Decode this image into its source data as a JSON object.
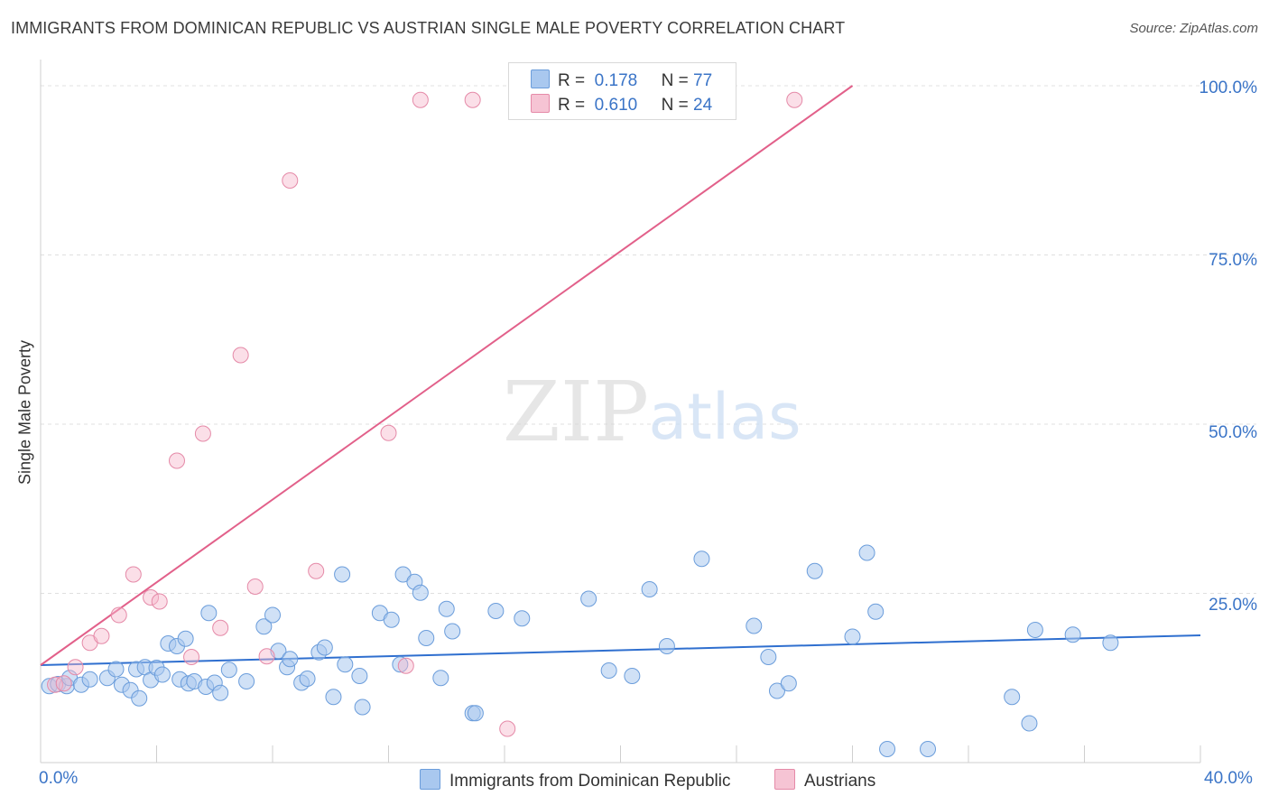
{
  "title": "IMMIGRANTS FROM DOMINICAN REPUBLIC VS AUSTRIAN SINGLE MALE POVERTY CORRELATION CHART",
  "source": "Source: ZipAtlas.com",
  "watermark": {
    "zip": "ZIP",
    "atlas": "atlas"
  },
  "legend_top": [
    {
      "r_label": "R =",
      "r_value": "0.178",
      "n_label": "N =",
      "n_value": "77"
    },
    {
      "r_label": "R =",
      "r_value": "0.610",
      "n_label": "N =",
      "n_value": "24"
    }
  ],
  "legend_bottom": [
    "Immigrants from Dominican Republic",
    "Austrians"
  ],
  "y_tick_labels": {
    "t100": "100.0%",
    "t75": "75.0%",
    "t50": "50.0%",
    "t25": "25.0%"
  },
  "x_tick_labels": {
    "left": "0.0%",
    "right": "40.0%"
  },
  "colors": {
    "blue_fill": "#a9c8ef",
    "blue_stroke": "#6b9ddb",
    "blue_line": "#2f6fcf",
    "pink_fill": "#f6b8cb",
    "pink_stroke": "#e58aa8",
    "pink_line": "#e2608a",
    "axis_text": "#3a74c7",
    "grid": "#e0e0e0"
  },
  "chart_data": {
    "type": "scatter",
    "title": "IMMIGRANTS FROM DOMINICAN REPUBLIC VS AUSTRIAN SINGLE MALE POVERTY CORRELATION CHART",
    "xlabel": "",
    "ylabel": "Single Male Poverty",
    "xlim": [
      0,
      40
    ],
    "ylim": [
      0,
      102
    ],
    "grid": true,
    "series": [
      {
        "name": "Immigrants from Dominican Republic",
        "color": "#6b9ddb",
        "R": 0.178,
        "N": 77,
        "trend": {
          "x": [
            0,
            40
          ],
          "y": [
            14.4,
            18.8
          ]
        },
        "points": [
          [
            0.3,
            11.3
          ],
          [
            0.6,
            11.6
          ],
          [
            0.9,
            11.3
          ],
          [
            1.0,
            12.5
          ],
          [
            1.4,
            11.5
          ],
          [
            1.7,
            12.3
          ],
          [
            2.3,
            12.5
          ],
          [
            2.8,
            11.5
          ],
          [
            3.1,
            10.7
          ],
          [
            3.4,
            9.5
          ],
          [
            3.3,
            13.8
          ],
          [
            3.6,
            14.1
          ],
          [
            3.8,
            12.2
          ],
          [
            4.0,
            14.0
          ],
          [
            4.2,
            13.0
          ],
          [
            4.4,
            17.6
          ],
          [
            4.7,
            17.2
          ],
          [
            5.0,
            18.3
          ],
          [
            4.8,
            12.3
          ],
          [
            5.1,
            11.7
          ],
          [
            5.3,
            12.0
          ],
          [
            5.7,
            11.2
          ],
          [
            5.8,
            22.1
          ],
          [
            6.0,
            11.8
          ],
          [
            6.2,
            10.3
          ],
          [
            6.5,
            13.7
          ],
          [
            7.1,
            12.0
          ],
          [
            7.7,
            20.1
          ],
          [
            8.0,
            21.8
          ],
          [
            8.2,
            16.5
          ],
          [
            8.5,
            14.1
          ],
          [
            8.6,
            15.3
          ],
          [
            9.0,
            11.8
          ],
          [
            9.2,
            12.4
          ],
          [
            9.6,
            16.3
          ],
          [
            9.8,
            17.0
          ],
          [
            10.1,
            9.7
          ],
          [
            10.5,
            14.5
          ],
          [
            10.4,
            27.8
          ],
          [
            11.1,
            8.2
          ],
          [
            11.0,
            12.8
          ],
          [
            11.7,
            22.1
          ],
          [
            12.1,
            21.1
          ],
          [
            12.4,
            14.5
          ],
          [
            12.5,
            27.8
          ],
          [
            12.9,
            26.7
          ],
          [
            13.1,
            25.1
          ],
          [
            13.3,
            18.4
          ],
          [
            13.8,
            12.5
          ],
          [
            14.0,
            22.7
          ],
          [
            14.2,
            19.4
          ],
          [
            14.9,
            7.3
          ],
          [
            15.0,
            7.3
          ],
          [
            15.7,
            22.4
          ],
          [
            16.6,
            21.3
          ],
          [
            18.9,
            24.2
          ],
          [
            19.6,
            13.6
          ],
          [
            20.4,
            12.8
          ],
          [
            21.0,
            25.6
          ],
          [
            21.6,
            17.2
          ],
          [
            22.8,
            30.1
          ],
          [
            24.6,
            20.2
          ],
          [
            25.1,
            15.6
          ],
          [
            25.4,
            10.6
          ],
          [
            25.8,
            11.7
          ],
          [
            26.7,
            28.3
          ],
          [
            28.0,
            18.6
          ],
          [
            28.5,
            31.0
          ],
          [
            28.8,
            22.3
          ],
          [
            29.2,
            2.0
          ],
          [
            30.6,
            2.0
          ],
          [
            33.5,
            9.7
          ],
          [
            34.1,
            5.8
          ],
          [
            34.3,
            19.6
          ],
          [
            35.6,
            18.9
          ],
          [
            36.9,
            17.7
          ],
          [
            2.6,
            13.8
          ]
        ]
      },
      {
        "name": "Austrians",
        "color": "#e58aa8",
        "R": 0.61,
        "N": 24,
        "trend": {
          "x": [
            0,
            28
          ],
          "y": [
            14.4,
            100.0
          ]
        },
        "points": [
          [
            0.5,
            11.5
          ],
          [
            0.8,
            11.7
          ],
          [
            1.2,
            14.1
          ],
          [
            1.7,
            17.7
          ],
          [
            2.1,
            18.7
          ],
          [
            2.7,
            21.8
          ],
          [
            3.2,
            27.8
          ],
          [
            3.8,
            24.4
          ],
          [
            4.1,
            23.8
          ],
          [
            4.7,
            44.6
          ],
          [
            5.2,
            15.6
          ],
          [
            5.6,
            48.6
          ],
          [
            6.2,
            19.9
          ],
          [
            6.9,
            60.2
          ],
          [
            7.4,
            26.0
          ],
          [
            7.8,
            15.7
          ],
          [
            8.6,
            86.0
          ],
          [
            9.5,
            28.3
          ],
          [
            12.0,
            48.7
          ],
          [
            12.6,
            14.3
          ],
          [
            13.1,
            97.9
          ],
          [
            14.9,
            97.9
          ],
          [
            16.1,
            5.0
          ],
          [
            26.0,
            97.9
          ]
        ]
      }
    ]
  }
}
